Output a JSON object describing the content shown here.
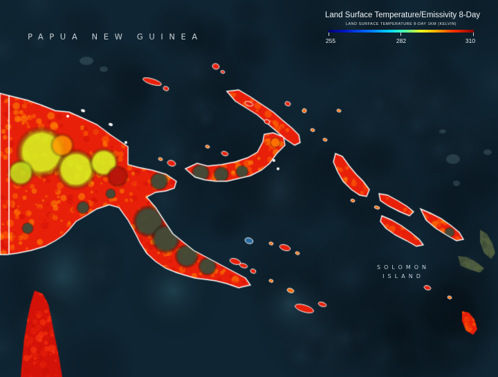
{
  "map": {
    "region_labels": {
      "papua_new_guinea": "PAPUA NEW GUINEA",
      "solomon_line1": "SOLOMON",
      "solomon_line2": "ISLAND"
    },
    "legend": {
      "title": "Land Surface Temperature/Emissivity 8-Day",
      "subtitle": "LAND SURFACE TEMPERATURE 8-DAY 1KM (KELVIN)",
      "min": "255",
      "mid": "282",
      "max": "310",
      "colormap": [
        "#000070",
        "#0018c8",
        "#0070ff",
        "#00d8ff",
        "#48ffb0",
        "#e6ff20",
        "#ffb000",
        "#ff3000",
        "#8c0000"
      ]
    },
    "colors": {
      "ocean": "#0f2533",
      "hot": "#e8200a",
      "warm": "#ff6a00",
      "very_warm": "#d41208",
      "cool": "#d8f020",
      "vegetation_gap": "#3e4c38",
      "coastline": "#ffffff"
    }
  }
}
